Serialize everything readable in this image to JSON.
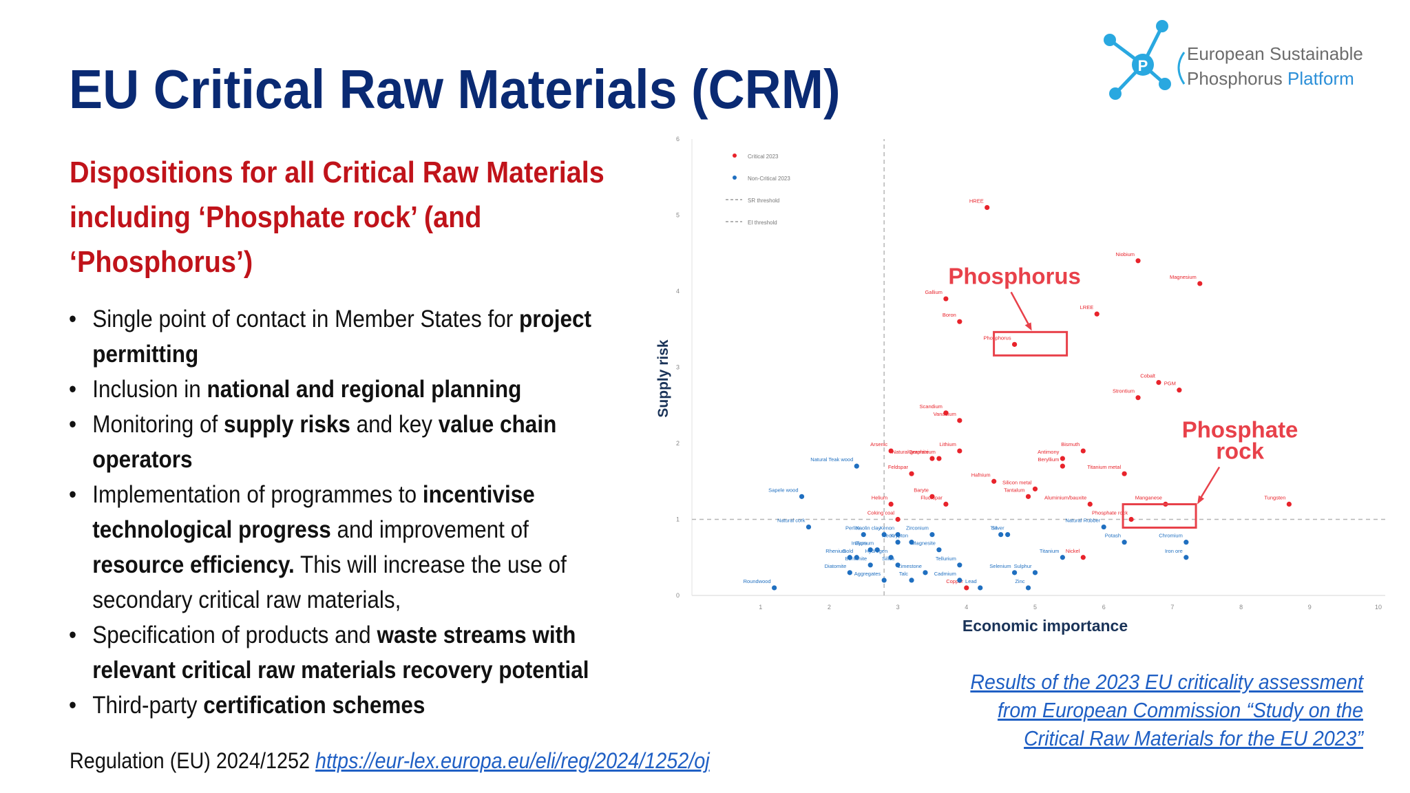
{
  "slide": {
    "title": "EU Critical Raw Materials (CRM)",
    "subtitle": "Dispositions for all Critical Raw Materials including ‘Phosphate rock’ (and ‘Phosphorus’)",
    "bullets": [
      [
        {
          "t": "Single point of contact in Member States for "
        },
        {
          "t": "project permitting",
          "b": true
        }
      ],
      [
        {
          "t": "Inclusion in "
        },
        {
          "t": "national and regional planning",
          "b": true
        }
      ],
      [
        {
          "t": "Monitoring of "
        },
        {
          "t": "supply risks",
          "b": true
        },
        {
          "t": " and key "
        },
        {
          "t": "value chain operators",
          "b": true
        }
      ],
      [
        {
          "t": "Implementation of programmes to "
        },
        {
          "t": "incentivise technological progress",
          "b": true
        },
        {
          "t": " and improvement of "
        },
        {
          "t": "resource efficiency.",
          "b": true
        },
        {
          "t": " This will increase the use of secondary critical raw materials,"
        }
      ],
      [
        {
          "t": "Specification of products and "
        },
        {
          "t": "waste streams with relevant critical raw materials recovery potential",
          "b": true
        }
      ],
      [
        {
          "t": "Third-party "
        },
        {
          "t": "certification schemes",
          "b": true
        }
      ]
    ],
    "regulation_text": "Regulation (EU) 2024/1252 ",
    "regulation_link": "https://eur-lex.europa.eu/eli/reg/2024/1252/oj",
    "caption": "Results of the 2023 EU criticality assessment from European Commission “Study on the Critical Raw Materials for the EU 2023”"
  },
  "logo": {
    "line1": "European Sustainable",
    "line2_a": "Phosphorus ",
    "line2_b": "Platform",
    "glyph": "P"
  },
  "colors": {
    "title": "#0a2a73",
    "subtitle": "#c0131a",
    "critical": "#e8232b",
    "non_critical": "#1f6fc0",
    "annotation": "#e8414a",
    "link": "#1f5fc4"
  },
  "chart_data": {
    "type": "scatter",
    "xlabel": "Economic importance",
    "ylabel": "Supply risk",
    "xlim": [
      0,
      10
    ],
    "ylim": [
      0,
      6
    ],
    "x_ticks": [
      1,
      2,
      3,
      4,
      5,
      6,
      7,
      8,
      9,
      10
    ],
    "y_ticks": [
      0,
      1,
      2,
      3,
      4,
      5,
      6
    ],
    "legend": [
      "Critical 2023",
      "Non-Critical 2023",
      "SR threshold",
      "EI threshold"
    ],
    "legend_position": "top-left",
    "thresholds": {
      "sr": 1.0,
      "ei": 2.8
    },
    "series": [
      {
        "name": "Critical 2023",
        "color": "#e8232b",
        "points": [
          {
            "label": "HREE",
            "x": 4.3,
            "y": 5.1
          },
          {
            "label": "Niobium",
            "x": 6.5,
            "y": 4.4
          },
          {
            "label": "Magnesium",
            "x": 7.4,
            "y": 4.1
          },
          {
            "label": "Gallium",
            "x": 3.7,
            "y": 3.9
          },
          {
            "label": "LREE",
            "x": 5.9,
            "y": 3.7
          },
          {
            "label": "Boron",
            "x": 3.9,
            "y": 3.6
          },
          {
            "label": "Phosphorus",
            "x": 4.7,
            "y": 3.3
          },
          {
            "label": "Cobalt",
            "x": 6.8,
            "y": 2.8
          },
          {
            "label": "PGM",
            "x": 7.1,
            "y": 2.7
          },
          {
            "label": "Strontium",
            "x": 6.5,
            "y": 2.6
          },
          {
            "label": "Scandium",
            "x": 3.7,
            "y": 2.4
          },
          {
            "label": "Vanadium",
            "x": 3.9,
            "y": 2.3
          },
          {
            "label": "Arsenic",
            "x": 2.9,
            "y": 1.9
          },
          {
            "label": "Germanium",
            "x": 3.6,
            "y": 1.8
          },
          {
            "label": "Lithium",
            "x": 3.9,
            "y": 1.9
          },
          {
            "label": "Natural graphite",
            "x": 3.5,
            "y": 1.8
          },
          {
            "label": "Antimony",
            "x": 5.4,
            "y": 1.8
          },
          {
            "label": "Bismuth",
            "x": 5.7,
            "y": 1.9
          },
          {
            "label": "Beryllium",
            "x": 5.4,
            "y": 1.7
          },
          {
            "label": "Feldspar",
            "x": 3.2,
            "y": 1.6
          },
          {
            "label": "Titanium metal",
            "x": 6.3,
            "y": 1.6
          },
          {
            "label": "Hafnium",
            "x": 4.4,
            "y": 1.5
          },
          {
            "label": "Silicon metal",
            "x": 5.0,
            "y": 1.4
          },
          {
            "label": "Baryte",
            "x": 3.5,
            "y": 1.3
          },
          {
            "label": "Tantalum",
            "x": 4.9,
            "y": 1.3
          },
          {
            "label": "Aluminium/bauxite",
            "x": 5.8,
            "y": 1.2
          },
          {
            "label": "Helium",
            "x": 2.9,
            "y": 1.2
          },
          {
            "label": "Fluorspar",
            "x": 3.7,
            "y": 1.2
          },
          {
            "label": "Coking coal",
            "x": 3.0,
            "y": 1.0
          },
          {
            "label": "Manganese",
            "x": 6.9,
            "y": 1.2
          },
          {
            "label": "Tungsten",
            "x": 8.7,
            "y": 1.2
          },
          {
            "label": "Phosphate rock",
            "x": 6.4,
            "y": 1.0
          },
          {
            "label": "Copper",
            "x": 4.0,
            "y": 0.1
          },
          {
            "label": "Nickel",
            "x": 5.7,
            "y": 0.5
          }
        ]
      },
      {
        "name": "Non-Critical 2023",
        "color": "#1f6fc0",
        "points": [
          {
            "label": "Natural Teak wood",
            "x": 2.4,
            "y": 1.7
          },
          {
            "label": "Sapele wood",
            "x": 1.6,
            "y": 1.3
          },
          {
            "label": "Natural cork",
            "x": 1.7,
            "y": 0.9
          },
          {
            "label": "Perlite",
            "x": 2.5,
            "y": 0.8
          },
          {
            "label": "Kaolin clay",
            "x": 2.8,
            "y": 0.8
          },
          {
            "label": "Xenon",
            "x": 3.0,
            "y": 0.8
          },
          {
            "label": "Krypton",
            "x": 3.2,
            "y": 0.7
          },
          {
            "label": "Zirconium",
            "x": 3.5,
            "y": 0.8
          },
          {
            "label": "Tin",
            "x": 4.5,
            "y": 0.8
          },
          {
            "label": "Silver",
            "x": 4.6,
            "y": 0.8
          },
          {
            "label": "Natural Rubber",
            "x": 6.0,
            "y": 0.9
          },
          {
            "label": "Potash",
            "x": 6.3,
            "y": 0.7
          },
          {
            "label": "Chromium",
            "x": 7.2,
            "y": 0.7
          },
          {
            "label": "Indium",
            "x": 2.6,
            "y": 0.6
          },
          {
            "label": "Gypsum",
            "x": 2.7,
            "y": 0.6
          },
          {
            "label": "Neon",
            "x": 3.0,
            "y": 0.7
          },
          {
            "label": "Magnesite",
            "x": 3.6,
            "y": 0.6
          },
          {
            "label": "Iron ore",
            "x": 7.2,
            "y": 0.5
          },
          {
            "label": "Rhenium",
            "x": 2.3,
            "y": 0.5
          },
          {
            "label": "Gold",
            "x": 2.4,
            "y": 0.5
          },
          {
            "label": "Hydrogen",
            "x": 2.9,
            "y": 0.5
          },
          {
            "label": "Tellurium",
            "x": 3.9,
            "y": 0.4
          },
          {
            "label": "Titanium",
            "x": 5.4,
            "y": 0.5
          },
          {
            "label": "Diatomite",
            "x": 2.3,
            "y": 0.3
          },
          {
            "label": "Bentonite",
            "x": 2.6,
            "y": 0.4
          },
          {
            "label": "Silica",
            "x": 3.0,
            "y": 0.4
          },
          {
            "label": "Limestone",
            "x": 3.4,
            "y": 0.3
          },
          {
            "label": "Selenium",
            "x": 4.7,
            "y": 0.3
          },
          {
            "label": "Sulphur",
            "x": 5.0,
            "y": 0.3
          },
          {
            "label": "Cadmium",
            "x": 3.9,
            "y": 0.2
          },
          {
            "label": "Aggregates",
            "x": 2.8,
            "y": 0.2
          },
          {
            "label": "Talc",
            "x": 3.2,
            "y": 0.2
          },
          {
            "label": "Lead",
            "x": 4.2,
            "y": 0.1
          },
          {
            "label": "Zinc",
            "x": 4.9,
            "y": 0.1
          },
          {
            "label": "Roundwood",
            "x": 1.2,
            "y": 0.1
          }
        ]
      }
    ],
    "annotations": [
      {
        "text": "Phosphorus",
        "target": "Phosphorus"
      },
      {
        "text_lines": [
          "Phosphate",
          "rock"
        ],
        "target": "Phosphate rock"
      }
    ]
  }
}
